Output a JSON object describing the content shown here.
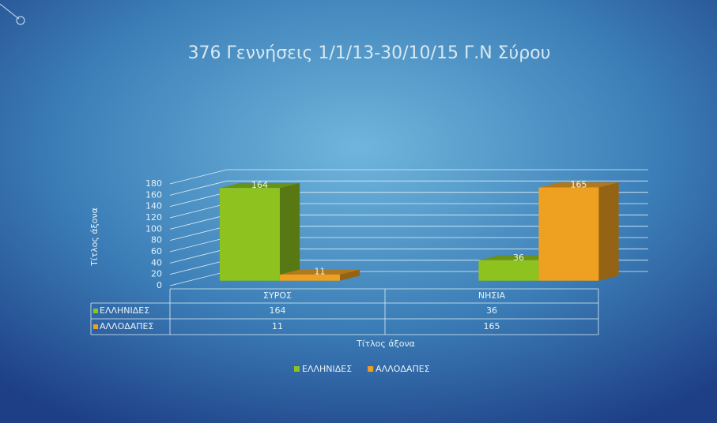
{
  "chart_data": {
    "type": "bar3d",
    "title": "376 Γεννήσεις 1/1/13-30/10/15 Γ.Ν Σύρου",
    "y_axis_title": "Τίτλος άξονα",
    "x_axis_title": "Τίτλος άξονα",
    "categories": [
      "ΣΥΡΟΣ",
      "ΝΗΣΙΑ"
    ],
    "series": [
      {
        "name": "ΕΛΛΗΝΙΔΕΣ",
        "color": "#8dc21f",
        "values": [
          164,
          36
        ]
      },
      {
        "name": "ΑΛΛΟΔΑΠΕΣ",
        "color": "#eea021",
        "values": [
          11,
          165
        ]
      }
    ],
    "ylim": [
      0,
      180
    ],
    "yticks": [
      0,
      20,
      40,
      60,
      80,
      100,
      120,
      140,
      160,
      180
    ],
    "grid": true,
    "data_table": true,
    "legend": "bottom"
  }
}
